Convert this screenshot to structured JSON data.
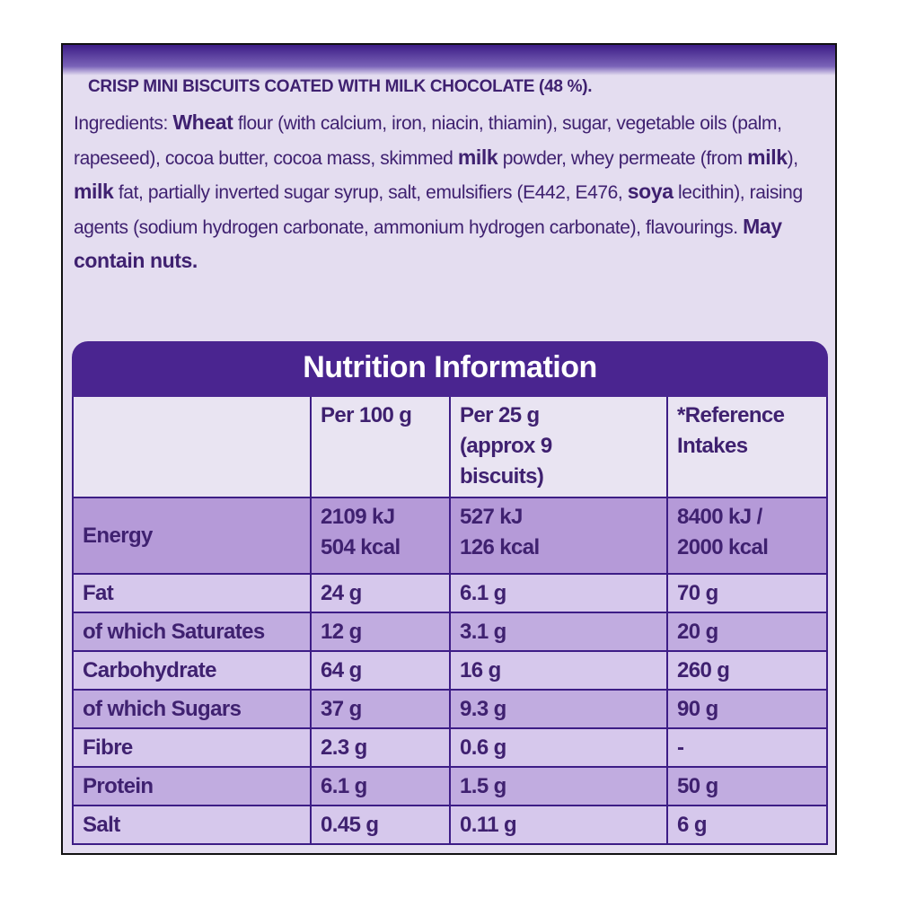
{
  "heading": "CRISP MINI BISCUITS COATED WITH MILK CHOCOLATE (48 %).",
  "ingredients": [
    {
      "text": "Ingredients: ",
      "bold": false
    },
    {
      "text": "Wheat",
      "bold": true
    },
    {
      "text": " flour (with calcium, iron, niacin, thiamin), sugar, vegetable oils (palm, rapeseed), cocoa butter, cocoa mass, skimmed ",
      "bold": false
    },
    {
      "text": "milk",
      "bold": true
    },
    {
      "text": " powder, whey permeate (from ",
      "bold": false
    },
    {
      "text": "milk",
      "bold": true
    },
    {
      "text": "), ",
      "bold": false
    },
    {
      "text": "milk",
      "bold": true
    },
    {
      "text": " fat, partially inverted sugar syrup, salt, emulsifiers (E442, E476, ",
      "bold": false
    },
    {
      "text": "soya",
      "bold": true
    },
    {
      "text": " lecithin), raising agents (sodium hydrogen carbonate, ammonium hydrogen carbonate), flavourings. ",
      "bold": false
    },
    {
      "text": "May contain nuts.",
      "bold": true
    }
  ],
  "table": {
    "title": "Nutrition Information",
    "header": [
      [
        "Per 100 g"
      ],
      [
        "Per 25 g",
        "(approx 9",
        "biscuits)"
      ],
      [
        "*Reference",
        "Intakes"
      ]
    ],
    "rows": [
      {
        "label": "Energy",
        "cells": [
          [
            "2109 kJ",
            "504 kcal"
          ],
          [
            "527 kJ",
            "126 kcal"
          ],
          [
            "8400 kJ /",
            "2000 kcal"
          ]
        ]
      },
      {
        "label": "Fat",
        "cells": [
          [
            "24 g"
          ],
          [
            "6.1 g"
          ],
          [
            "70 g"
          ]
        ]
      },
      {
        "label": "of which Saturates",
        "cells": [
          [
            "12 g"
          ],
          [
            "3.1 g"
          ],
          [
            "20 g"
          ]
        ]
      },
      {
        "label": "Carbohydrate",
        "cells": [
          [
            "64 g"
          ],
          [
            "16 g"
          ],
          [
            "260 g"
          ]
        ]
      },
      {
        "label": "of which Sugars",
        "cells": [
          [
            "37 g"
          ],
          [
            "9.3 g"
          ],
          [
            "90 g"
          ]
        ]
      },
      {
        "label": "Fibre",
        "cells": [
          [
            "2.3 g"
          ],
          [
            "0.6 g"
          ],
          [
            "-"
          ]
        ]
      },
      {
        "label": "Protein",
        "cells": [
          [
            "6.1 g"
          ],
          [
            "1.5 g"
          ],
          [
            "50 g"
          ]
        ]
      },
      {
        "label": "Salt",
        "cells": [
          [
            "0.45 g"
          ],
          [
            "0.11 g"
          ],
          [
            "6 g"
          ]
        ]
      }
    ]
  }
}
